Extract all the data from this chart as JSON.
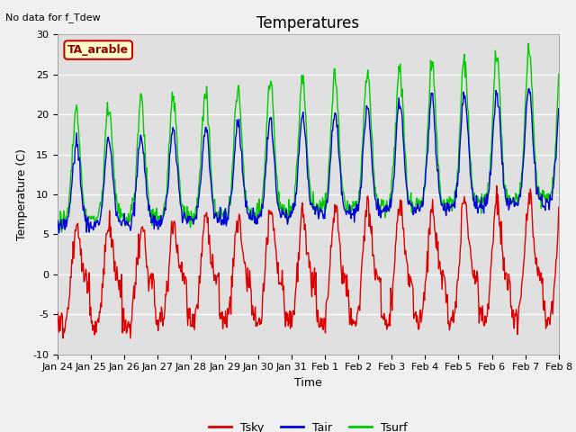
{
  "title": "Temperatures",
  "xlabel": "Time",
  "ylabel": "Temperature (C)",
  "ylim": [
    -10,
    30
  ],
  "n_days": 15.5,
  "n_points_per_day": 48,
  "fig_bg_color": "#f0f0f0",
  "plot_bg_color": "#e0e0e0",
  "tsky_color": "#dd0000",
  "tair_color": "#0000dd",
  "tsurf_color": "#00cc00",
  "legend_labels": [
    "Tsky",
    "Tair",
    "Tsurf"
  ],
  "no_data_text": "No data for f_Tdew",
  "site_label": "TA_arable",
  "title_fontsize": 12,
  "axis_fontsize": 9,
  "tick_fontsize": 8,
  "xtick_labels": [
    "Jan 24",
    "Jan 25",
    "Jan 26",
    "Jan 27",
    "Jan 28",
    "Jan 29",
    "Jan 30",
    "Jan 31",
    "Feb 1",
    "Feb 2",
    "Feb 3",
    "Feb 4",
    "Feb 5",
    "Feb 6",
    "Feb 7",
    "Feb 8"
  ],
  "yticks": [
    -10,
    -5,
    0,
    5,
    10,
    15,
    20,
    25,
    30
  ],
  "linewidth": 1.0
}
